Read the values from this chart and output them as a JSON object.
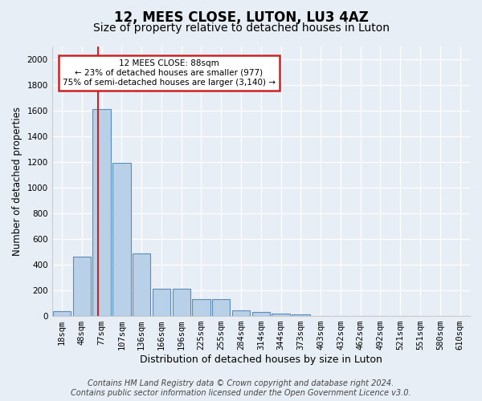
{
  "title": "12, MEES CLOSE, LUTON, LU3 4AZ",
  "subtitle": "Size of property relative to detached houses in Luton",
  "xlabel": "Distribution of detached houses by size in Luton",
  "ylabel": "Number of detached properties",
  "categories": [
    "18sqm",
    "48sqm",
    "77sqm",
    "107sqm",
    "136sqm",
    "166sqm",
    "196sqm",
    "225sqm",
    "255sqm",
    "284sqm",
    "314sqm",
    "344sqm",
    "373sqm",
    "403sqm",
    "432sqm",
    "462sqm",
    "492sqm",
    "521sqm",
    "551sqm",
    "580sqm",
    "610sqm"
  ],
  "values": [
    35,
    460,
    1610,
    1190,
    490,
    210,
    210,
    130,
    130,
    45,
    30,
    20,
    15,
    0,
    0,
    0,
    0,
    0,
    0,
    0,
    0
  ],
  "bar_color": "#b8d0e8",
  "bar_edge_color": "#5b8db8",
  "red_line_x": 1.82,
  "annotation_line1": "12 MEES CLOSE: 88sqm",
  "annotation_line2": "← 23% of detached houses are smaller (977)",
  "annotation_line3": "75% of semi-detached houses are larger (3,140) →",
  "annotation_box_color": "#ffffff",
  "annotation_box_edge_color": "#cc2222",
  "bg_color": "#e8eef5",
  "ylim": [
    0,
    2100
  ],
  "yticks": [
    0,
    200,
    400,
    600,
    800,
    1000,
    1200,
    1400,
    1600,
    1800,
    2000
  ],
  "footer_line1": "Contains HM Land Registry data © Crown copyright and database right 2024.",
  "footer_line2": "Contains public sector information licensed under the Open Government Licence v3.0.",
  "title_fontsize": 12,
  "subtitle_fontsize": 10,
  "xlabel_fontsize": 9,
  "ylabel_fontsize": 8.5,
  "tick_fontsize": 7.5,
  "footer_fontsize": 7
}
